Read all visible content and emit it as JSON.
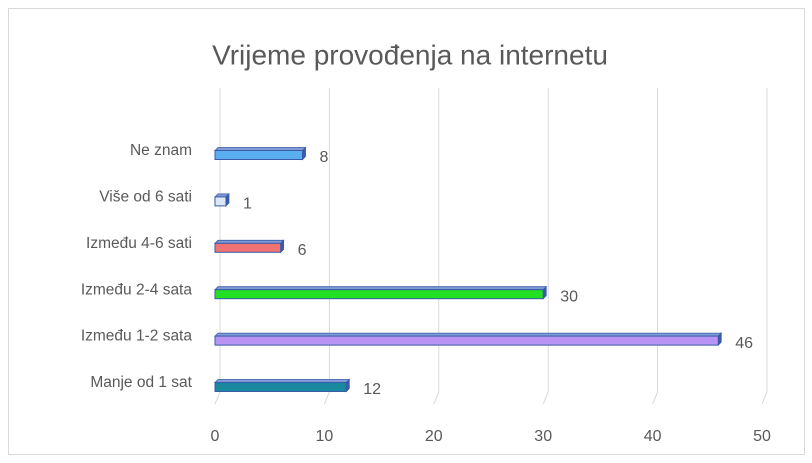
{
  "chart_data": {
    "type": "bar",
    "orientation": "horizontal",
    "title": "Vrijeme provođenja na internetu",
    "categories": [
      "Ne znam",
      "Više od 6 sati",
      "Između 4-6 sati",
      "Između 2-4 sata",
      "Između 1-2 sata",
      "Manje od 1 sat"
    ],
    "values": [
      8,
      1,
      6,
      30,
      46,
      12
    ],
    "colors": [
      "#5aaef0",
      "#dce7f7",
      "#f07272",
      "#22e022",
      "#b894f5",
      "#17889e"
    ],
    "xlim": [
      0,
      50
    ],
    "xticks": [
      0,
      10,
      20,
      30,
      40,
      50
    ],
    "grid": true
  }
}
